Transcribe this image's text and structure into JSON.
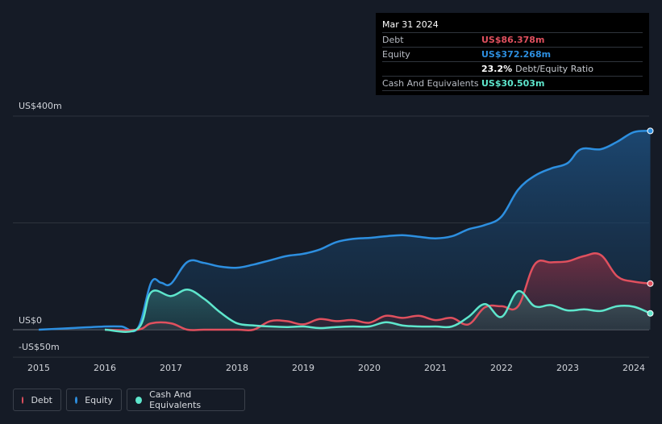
{
  "tooltip": {
    "date": "Mar 31 2024",
    "rows": [
      {
        "label": "Debt",
        "value": "US$86.378m"
      },
      {
        "label": "Equity",
        "value": "US$372.268m"
      },
      {
        "label": "",
        "value": "23.2%",
        "suffix": "Debt/Equity Ratio"
      },
      {
        "label": "Cash And Equivalents",
        "value": "US$30.503m"
      }
    ]
  },
  "legend": [
    {
      "label": "Debt",
      "color": "#e0505e"
    },
    {
      "label": "Equity",
      "color": "#2d8fe0"
    },
    {
      "label": "Cash And Equivalents",
      "color": "#5ee6cc"
    }
  ],
  "chart_data": {
    "type": "area",
    "y_tick_labels": [
      "US$400m",
      "US$0",
      "-US$50m"
    ],
    "ylim": [
      -50,
      400
    ],
    "xlim": [
      2015,
      2024.25
    ],
    "x_tick_labels": [
      "2015",
      "2016",
      "2017",
      "2018",
      "2019",
      "2020",
      "2021",
      "2022",
      "2023",
      "2024"
    ],
    "grid": true,
    "legend_position": "bottom-left",
    "series": [
      {
        "name": "Equity",
        "color": "#2d8fe0",
        "points": [
          [
            2015,
            0
          ],
          [
            2015.5,
            3
          ],
          [
            2016,
            6
          ],
          [
            2016.25,
            6
          ],
          [
            2016.5,
            3
          ],
          [
            2016.7,
            88
          ],
          [
            2016.85,
            88
          ],
          [
            2017,
            86
          ],
          [
            2017.25,
            127
          ],
          [
            2017.5,
            125
          ],
          [
            2017.75,
            118
          ],
          [
            2018,
            116
          ],
          [
            2018.25,
            122
          ],
          [
            2018.5,
            130
          ],
          [
            2018.75,
            138
          ],
          [
            2019,
            142
          ],
          [
            2019.25,
            150
          ],
          [
            2019.5,
            164
          ],
          [
            2019.75,
            170
          ],
          [
            2020,
            172
          ],
          [
            2020.25,
            175
          ],
          [
            2020.5,
            177
          ],
          [
            2020.75,
            174
          ],
          [
            2021,
            171
          ],
          [
            2021.25,
            175
          ],
          [
            2021.5,
            188
          ],
          [
            2021.75,
            196
          ],
          [
            2022,
            212
          ],
          [
            2022.25,
            262
          ],
          [
            2022.5,
            288
          ],
          [
            2022.75,
            302
          ],
          [
            2023,
            312
          ],
          [
            2023.2,
            338
          ],
          [
            2023.5,
            338
          ],
          [
            2023.75,
            352
          ],
          [
            2024,
            370
          ],
          [
            2024.25,
            372.268
          ]
        ]
      },
      {
        "name": "Debt",
        "color": "#e0505e",
        "points": [
          [
            2016,
            0
          ],
          [
            2016.5,
            0
          ],
          [
            2016.7,
            12
          ],
          [
            2017,
            12
          ],
          [
            2017.25,
            0
          ],
          [
            2017.5,
            0
          ],
          [
            2018,
            0
          ],
          [
            2018.25,
            0
          ],
          [
            2018.5,
            16
          ],
          [
            2018.75,
            16
          ],
          [
            2019,
            10
          ],
          [
            2019.25,
            20
          ],
          [
            2019.5,
            16
          ],
          [
            2019.75,
            18
          ],
          [
            2020,
            13
          ],
          [
            2020.25,
            26
          ],
          [
            2020.5,
            22
          ],
          [
            2020.75,
            26
          ],
          [
            2021,
            18
          ],
          [
            2021.25,
            22
          ],
          [
            2021.5,
            10
          ],
          [
            2021.75,
            42
          ],
          [
            2022,
            44
          ],
          [
            2022.25,
            44
          ],
          [
            2022.5,
            122
          ],
          [
            2022.75,
            126
          ],
          [
            2023,
            128
          ],
          [
            2023.25,
            138
          ],
          [
            2023.5,
            140
          ],
          [
            2023.75,
            100
          ],
          [
            2024,
            90
          ],
          [
            2024.25,
            86.378
          ]
        ]
      },
      {
        "name": "Cash And Equivalents",
        "color": "#5ee6cc",
        "points": [
          [
            2016,
            0
          ],
          [
            2016.5,
            2
          ],
          [
            2016.7,
            70
          ],
          [
            2017,
            63
          ],
          [
            2017.25,
            75
          ],
          [
            2017.5,
            58
          ],
          [
            2017.75,
            32
          ],
          [
            2018,
            12
          ],
          [
            2018.25,
            8
          ],
          [
            2018.5,
            6
          ],
          [
            2018.75,
            5
          ],
          [
            2019,
            6
          ],
          [
            2019.25,
            3
          ],
          [
            2019.5,
            5
          ],
          [
            2019.75,
            6
          ],
          [
            2020,
            6
          ],
          [
            2020.25,
            14
          ],
          [
            2020.5,
            8
          ],
          [
            2020.75,
            6
          ],
          [
            2021,
            6
          ],
          [
            2021.25,
            6
          ],
          [
            2021.5,
            24
          ],
          [
            2021.75,
            48
          ],
          [
            2022,
            24
          ],
          [
            2022.25,
            72
          ],
          [
            2022.5,
            44
          ],
          [
            2022.75,
            46
          ],
          [
            2023,
            36
          ],
          [
            2023.25,
            38
          ],
          [
            2023.5,
            35
          ],
          [
            2023.75,
            44
          ],
          [
            2024,
            43
          ],
          [
            2024.25,
            30.503
          ]
        ]
      }
    ]
  }
}
